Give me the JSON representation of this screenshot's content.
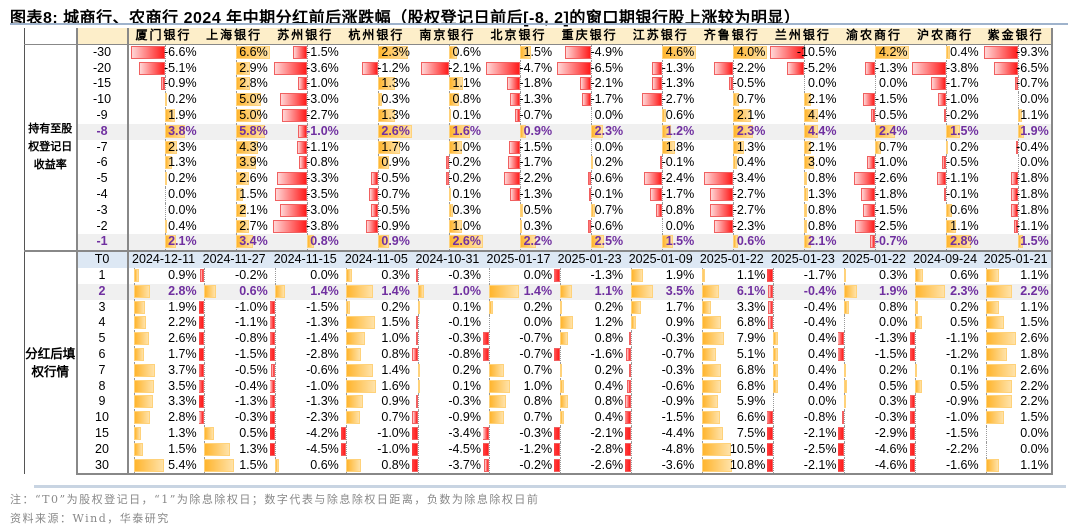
{
  "title": "图表8:  城商行、农商行 2024 年中期分红前后涨跌幅（股权登记日前后[-8, 2]的窗口期银行股上涨较为明显）",
  "banks": [
    "厦门银行",
    "上海银行",
    "苏州银行",
    "杭州银行",
    "南京银行",
    "北京银行",
    "重庆银行",
    "江苏银行",
    "齐鲁银行",
    "兰州银行",
    "渝农商行",
    "沪农商行",
    "紫金银行"
  ],
  "top_section": {
    "label": "持有至股权登记日收益率",
    "label_lines": [
      "持有至股",
      "权登记日",
      "收益率"
    ],
    "rows": [
      {
        "idx": "-30",
        "values": [
          -6.6,
          6.6,
          -1.5,
          2.3,
          0.6,
          1.5,
          -4.9,
          4.6,
          4.0,
          -10.5,
          4.2,
          0.4,
          -9.3
        ],
        "highlight": false
      },
      {
        "idx": "-20",
        "values": [
          -5.1,
          2.9,
          -3.6,
          -1.2,
          -2.1,
          -4.7,
          -6.5,
          -1.3,
          -2.2,
          -5.2,
          -1.3,
          -3.8,
          -6.5
        ],
        "highlight": false
      },
      {
        "idx": "-15",
        "values": [
          -0.9,
          2.8,
          -1.0,
          1.3,
          1.1,
          -1.8,
          -2.1,
          -1.3,
          -0.5,
          0.0,
          0.0,
          -1.7,
          -0.7
        ],
        "highlight": false
      },
      {
        "idx": "-10",
        "values": [
          0.2,
          5.0,
          -3.0,
          0.3,
          0.8,
          -1.3,
          -1.7,
          -2.7,
          0.7,
          2.1,
          -1.5,
          -1.0,
          0.0
        ],
        "highlight": false
      },
      {
        "idx": "-9",
        "values": [
          1.9,
          5.0,
          -2.7,
          1.3,
          0.1,
          -0.7,
          0.0,
          0.6,
          2.1,
          4.4,
          -0.5,
          -0.2,
          1.1
        ],
        "highlight": false
      },
      {
        "idx": "-8",
        "values": [
          3.8,
          5.8,
          -1.0,
          2.6,
          1.6,
          0.9,
          2.3,
          1.2,
          2.3,
          4.4,
          2.4,
          1.5,
          1.9
        ],
        "highlight": true
      },
      {
        "idx": "-7",
        "values": [
          2.3,
          4.3,
          -1.1,
          1.7,
          1.0,
          -1.5,
          0.0,
          1.8,
          1.3,
          2.1,
          0.7,
          0.2,
          -0.4
        ],
        "highlight": false
      },
      {
        "idx": "-6",
        "values": [
          1.3,
          3.9,
          -0.8,
          0.9,
          -0.2,
          -1.7,
          0.2,
          -0.1,
          0.4,
          3.0,
          -1.0,
          -0.5,
          0.0
        ],
        "highlight": false
      },
      {
        "idx": "-5",
        "values": [
          0.2,
          2.6,
          -3.3,
          -0.5,
          -0.2,
          -2.2,
          -0.6,
          -2.4,
          -3.4,
          0.8,
          -2.6,
          -1.1,
          -1.8
        ],
        "highlight": false
      },
      {
        "idx": "-4",
        "values": [
          0.0,
          1.5,
          -3.5,
          -0.7,
          0.1,
          -1.3,
          -0.1,
          -1.7,
          -2.7,
          1.3,
          -1.8,
          -0.1,
          -1.8
        ],
        "highlight": false
      },
      {
        "idx": "-3",
        "values": [
          0.0,
          2.1,
          -3.0,
          -0.5,
          0.3,
          0.5,
          0.7,
          -0.8,
          -2.7,
          0.8,
          -1.5,
          0.6,
          -1.8
        ],
        "highlight": false
      },
      {
        "idx": "-2",
        "values": [
          0.4,
          2.7,
          -3.8,
          -0.9,
          1.0,
          0.3,
          -0.6,
          0.0,
          -2.3,
          0.8,
          -2.5,
          1.1,
          -1.1
        ],
        "highlight": false
      },
      {
        "idx": "-1",
        "values": [
          2.1,
          3.4,
          0.8,
          0.9,
          2.6,
          2.2,
          2.5,
          1.5,
          0.6,
          2.1,
          -0.7,
          2.8,
          1.5
        ],
        "highlight": true
      }
    ]
  },
  "bottom_section": {
    "label": "分红后填权行情",
    "label_lines": [
      "分红后填",
      "权行情"
    ],
    "t0_label": "T0",
    "t0_dates": [
      "2024-12-11",
      "2024-11-27",
      "2024-11-15",
      "2024-11-05",
      "2024-10-31",
      "2025-01-17",
      "2025-01-23",
      "2025-01-09",
      "2025-01-22",
      "2025-01-23",
      "2025-01-22",
      "2024-09-24",
      "2025-01-21"
    ],
    "rows": [
      {
        "idx": "1",
        "values": [
          0.9,
          -0.2,
          0.0,
          0.3,
          -0.3,
          0.0,
          -1.3,
          1.9,
          1.1,
          -1.7,
          0.3,
          0.6,
          1.1
        ],
        "highlight": false
      },
      {
        "idx": "2",
        "values": [
          2.8,
          0.6,
          1.4,
          1.4,
          1.0,
          1.4,
          1.1,
          3.5,
          6.1,
          -0.4,
          1.9,
          2.3,
          2.2
        ],
        "highlight": true
      },
      {
        "idx": "3",
        "values": [
          1.9,
          -1.0,
          -1.5,
          0.2,
          0.1,
          0.2,
          0.2,
          1.7,
          3.3,
          -0.4,
          0.8,
          0.2,
          1.1
        ],
        "highlight": false
      },
      {
        "idx": "4",
        "values": [
          2.2,
          -1.1,
          -1.3,
          1.5,
          -0.1,
          0.0,
          1.2,
          0.9,
          6.8,
          -0.4,
          0.0,
          0.5,
          1.5
        ],
        "highlight": false
      },
      {
        "idx": "5",
        "values": [
          2.6,
          -0.8,
          -1.4,
          1.0,
          -0.3,
          -0.7,
          0.8,
          -0.3,
          7.9,
          0.4,
          -1.3,
          -1.1,
          2.6
        ],
        "highlight": false
      },
      {
        "idx": "6",
        "values": [
          1.7,
          -1.5,
          -2.8,
          0.8,
          -0.8,
          -0.7,
          -1.6,
          -0.7,
          5.1,
          0.4,
          -1.5,
          -1.2,
          1.8
        ],
        "highlight": false
      },
      {
        "idx": "7",
        "values": [
          3.7,
          -0.5,
          -0.6,
          1.4,
          0.2,
          0.7,
          0.2,
          -0.3,
          6.8,
          0.4,
          0.2,
          0.1,
          2.6
        ],
        "highlight": false
      },
      {
        "idx": "8",
        "values": [
          3.5,
          -0.4,
          -1.0,
          1.6,
          0.1,
          1.0,
          0.4,
          -0.6,
          6.8,
          0.4,
          0.5,
          0.5,
          2.2
        ],
        "highlight": false
      },
      {
        "idx": "9",
        "values": [
          3.3,
          -1.3,
          -1.3,
          0.9,
          -0.3,
          0.8,
          0.8,
          -0.9,
          5.9,
          0.0,
          0.3,
          -0.9,
          2.2
        ],
        "highlight": false
      },
      {
        "idx": "10",
        "values": [
          2.8,
          -0.3,
          -2.3,
          0.7,
          -0.9,
          0.7,
          0.4,
          -1.5,
          6.6,
          -0.8,
          -0.3,
          -1.0,
          1.5
        ],
        "highlight": false
      },
      {
        "idx": "15",
        "values": [
          1.3,
          0.5,
          -4.2,
          -1.0,
          -3.4,
          -0.3,
          -2.1,
          -4.4,
          7.5,
          -2.1,
          -2.9,
          -1.5,
          0.0
        ],
        "highlight": false
      },
      {
        "idx": "20",
        "values": [
          1.5,
          1.3,
          -4.5,
          -1.0,
          -4.5,
          -1.2,
          -2.8,
          -4.8,
          10.5,
          -2.5,
          -4.6,
          -2.2,
          0.0
        ],
        "highlight": false
      },
      {
        "idx": "30",
        "values": [
          5.4,
          1.5,
          0.6,
          0.8,
          -3.7,
          -0.2,
          -2.6,
          -3.6,
          10.8,
          -2.1,
          -4.6,
          -1.6,
          1.1
        ],
        "highlight": false
      }
    ]
  },
  "notes": {
    "note": "注：“T0”为股权登记日，“1”为除息除权日；数字代表与除息除权日距离，负数为除息除权日前",
    "source": "资料来源：Wind，华泰研究"
  },
  "colors": {
    "positive_bar": "#ffb52e",
    "negative_bar": "#ff1c1c",
    "highlight_text": "#7030a0",
    "header_bg": "#fdeec9",
    "date_header_bg": "#dde8f4"
  },
  "chart_data": {
    "type": "table",
    "title": "城商行、农商行 2024 年中期分红前后涨跌幅（股权登记日前后[-8, 2]的窗口期银行股上涨较为明显）",
    "columns": [
      "厦门银行",
      "上海银行",
      "苏州银行",
      "杭州银行",
      "南京银行",
      "北京银行",
      "重庆银行",
      "江苏银行",
      "齐鲁银行",
      "兰州银行",
      "渝农商行",
      "沪农商行",
      "紫金银行"
    ],
    "unit": "%",
    "sections": [
      {
        "name": "持有至股权登记日收益率",
        "row_labels": [
          "-30",
          "-20",
          "-15",
          "-10",
          "-9",
          "-8",
          "-7",
          "-6",
          "-5",
          "-4",
          "-3",
          "-2",
          "-1"
        ],
        "highlight_rows": [
          "-8",
          "-1"
        ]
      },
      {
        "name": "分红后填权行情",
        "t0_dates": [
          "2024-12-11",
          "2024-11-27",
          "2024-11-15",
          "2024-11-05",
          "2024-10-31",
          "2025-01-17",
          "2025-01-23",
          "2025-01-09",
          "2025-01-22",
          "2025-01-23",
          "2025-01-22",
          "2024-09-24",
          "2025-01-21"
        ],
        "row_labels": [
          "1",
          "2",
          "3",
          "4",
          "5",
          "6",
          "7",
          "8",
          "9",
          "10",
          "15",
          "20",
          "30"
        ],
        "highlight_rows": [
          "2"
        ]
      }
    ],
    "encoding": "in-cell data bars: orange = positive, red = negative"
  }
}
